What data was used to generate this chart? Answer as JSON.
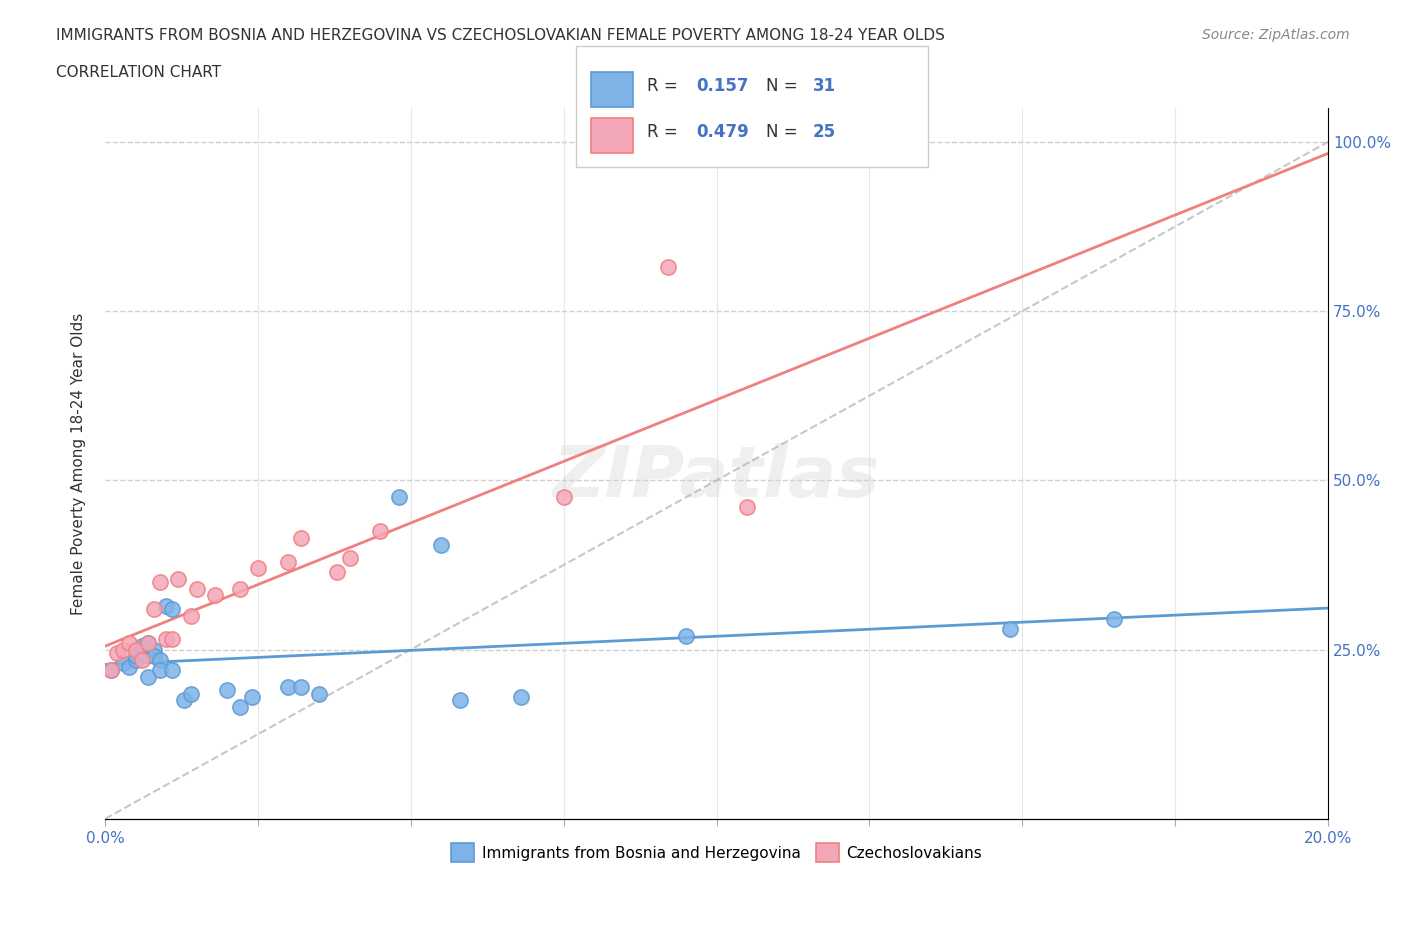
{
  "title_line1": "IMMIGRANTS FROM BOSNIA AND HERZEGOVINA VS CZECHOSLOVAKIAN FEMALE POVERTY AMONG 18-24 YEAR OLDS",
  "title_line2": "CORRELATION CHART",
  "source": "Source: ZipAtlas.com",
  "xlabel": "",
  "ylabel": "Female Poverty Among 18-24 Year Olds",
  "xlim": [
    0.0,
    0.2
  ],
  "ylim": [
    0.0,
    1.05
  ],
  "xticks": [
    0.0,
    0.025,
    0.05,
    0.075,
    0.1,
    0.125,
    0.15,
    0.175,
    0.2
  ],
  "r1": 0.157,
  "n1": 31,
  "r2": 0.479,
  "n2": 25,
  "color_bosnia": "#7fb3e8",
  "color_czech": "#f4a7b9",
  "color_bosnia_line": "#5b9bd5",
  "color_czech_line": "#f08080",
  "color_dashed_line": "#b0b0b0",
  "bosnia_x": [
    0.001,
    0.003,
    0.004,
    0.005,
    0.005,
    0.006,
    0.006,
    0.007,
    0.007,
    0.008,
    0.008,
    0.009,
    0.009,
    0.01,
    0.011,
    0.011,
    0.013,
    0.014,
    0.02,
    0.022,
    0.024,
    0.03,
    0.032,
    0.035,
    0.048,
    0.055,
    0.058,
    0.068,
    0.095,
    0.148,
    0.165
  ],
  "bosnia_y": [
    0.22,
    0.23,
    0.225,
    0.235,
    0.24,
    0.245,
    0.255,
    0.26,
    0.21,
    0.25,
    0.24,
    0.235,
    0.22,
    0.315,
    0.31,
    0.22,
    0.175,
    0.185,
    0.19,
    0.165,
    0.18,
    0.195,
    0.195,
    0.185,
    0.475,
    0.405,
    0.175,
    0.18,
    0.27,
    0.28,
    0.295
  ],
  "czech_x": [
    0.001,
    0.002,
    0.003,
    0.004,
    0.005,
    0.006,
    0.007,
    0.008,
    0.009,
    0.01,
    0.011,
    0.012,
    0.014,
    0.015,
    0.018,
    0.022,
    0.025,
    0.03,
    0.032,
    0.038,
    0.04,
    0.045,
    0.075,
    0.092,
    0.105
  ],
  "czech_y": [
    0.22,
    0.245,
    0.25,
    0.26,
    0.25,
    0.235,
    0.26,
    0.31,
    0.35,
    0.265,
    0.265,
    0.355,
    0.3,
    0.34,
    0.33,
    0.34,
    0.37,
    0.38,
    0.415,
    0.365,
    0.385,
    0.425,
    0.475,
    0.815,
    0.46
  ],
  "watermark": "ZIPatlas",
  "background_color": "#ffffff",
  "plot_bg_color": "#ffffff",
  "grid_color": "#d0d0d0"
}
